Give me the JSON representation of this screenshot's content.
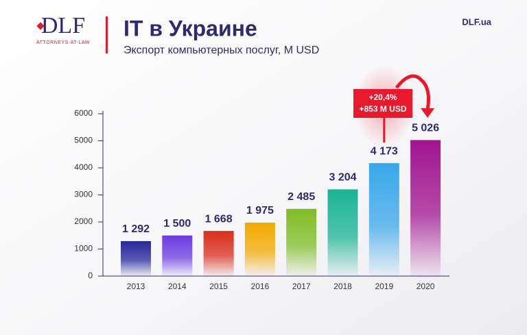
{
  "header": {
    "logo": "DLF",
    "tagline": "ATTORNEYS-AT-LAW",
    "site": "DLF.ua"
  },
  "chart_data": {
    "type": "bar",
    "title": "IT в Украине",
    "subtitle": "Экспорт компьютерных послуг, M USD",
    "categories": [
      "2013",
      "2014",
      "2015",
      "2016",
      "2017",
      "2018",
      "2019",
      "2020"
    ],
    "values": [
      1292,
      1500,
      1668,
      1975,
      2485,
      3204,
      4173,
      5026
    ],
    "value_labels": [
      "1 292",
      "1 500",
      "1 668",
      "1 975",
      "2 485",
      "3 204",
      "4 173",
      "5 026"
    ],
    "colors": [
      "#27279a",
      "#6b3ce0",
      "#d92e1c",
      "#f3a900",
      "#7fbd26",
      "#19b493",
      "#38a7ea",
      "#a0148f"
    ],
    "ylim": [
      0,
      6000
    ],
    "yticks": [
      0,
      1000,
      2000,
      3000,
      4000,
      5000,
      6000
    ],
    "annotation": [
      "+20,4%",
      "+853 M USD"
    ]
  }
}
